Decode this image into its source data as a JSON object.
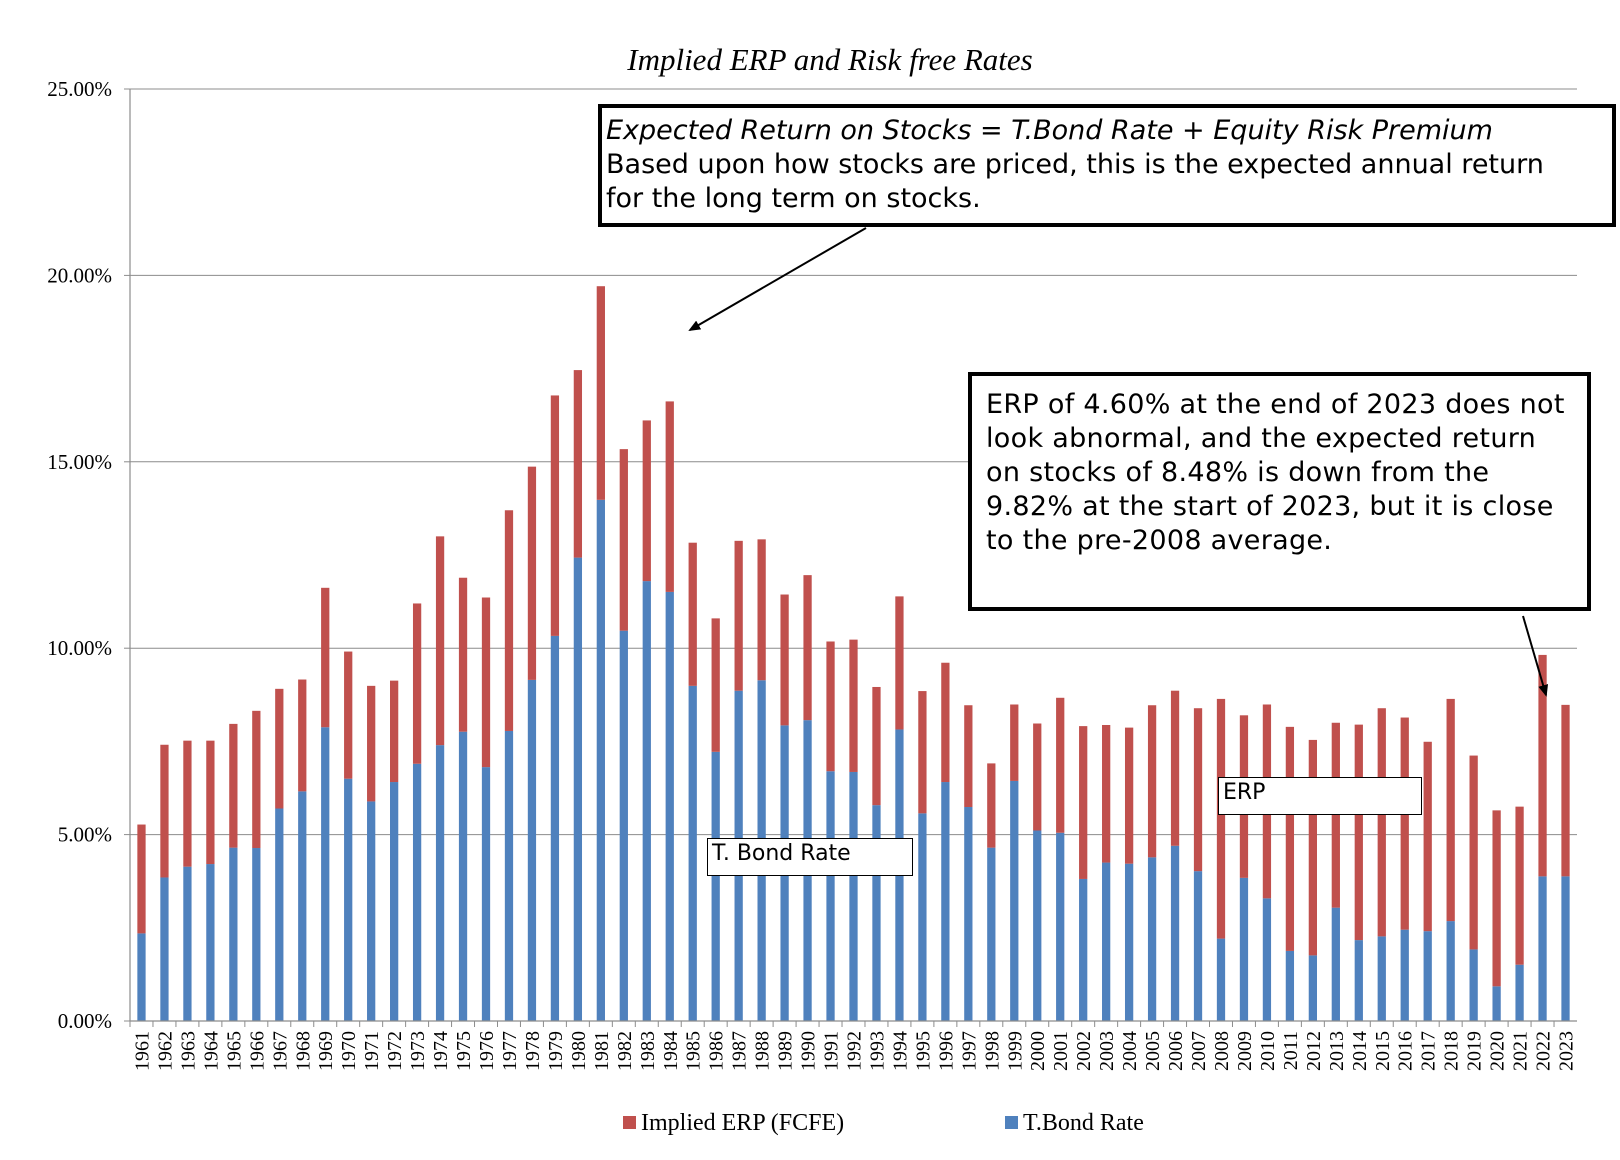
{
  "chart_data": {
    "type": "bar",
    "stacked": true,
    "title": "Implied ERP and Risk free Rates",
    "xlabel": "",
    "ylabel": "",
    "ylim": [
      0,
      25
    ],
    "yticks": [
      "0.00%",
      "5.00%",
      "10.00%",
      "15.00%",
      "20.00%",
      "25.00%"
    ],
    "ytick_values": [
      0,
      5,
      10,
      15,
      20,
      25
    ],
    "grid": true,
    "legend_position": "bottom",
    "categories": [
      "1961",
      "1962",
      "1963",
      "1964",
      "1965",
      "1966",
      "1967",
      "1968",
      "1969",
      "1970",
      "1971",
      "1972",
      "1973",
      "1974",
      "1975",
      "1976",
      "1977",
      "1978",
      "1979",
      "1980",
      "1981",
      "1982",
      "1983",
      "1984",
      "1985",
      "1986",
      "1987",
      "1988",
      "1989",
      "1990",
      "1991",
      "1992",
      "1993",
      "1994",
      "1995",
      "1996",
      "1997",
      "1998",
      "1999",
      "2000",
      "2001",
      "2002",
      "2003",
      "2004",
      "2005",
      "2006",
      "2007",
      "2008",
      "2009",
      "2010",
      "2011",
      "2012",
      "2013",
      "2014",
      "2015",
      "2016",
      "2017",
      "2018",
      "2019",
      "2020",
      "2021",
      "2022",
      "2023"
    ],
    "series": [
      {
        "name": "T.Bond Rate",
        "color": "#4f81bd",
        "values": [
          2.35,
          3.85,
          4.14,
          4.21,
          4.65,
          4.64,
          5.7,
          6.16,
          7.88,
          6.5,
          5.89,
          6.41,
          6.9,
          7.4,
          7.76,
          6.81,
          7.78,
          9.15,
          10.33,
          12.43,
          13.98,
          10.47,
          11.8,
          11.51,
          8.99,
          7.22,
          8.86,
          9.14,
          7.93,
          8.07,
          6.7,
          6.68,
          5.79,
          7.82,
          5.57,
          6.41,
          5.74,
          4.65,
          6.44,
          5.11,
          5.05,
          3.81,
          4.25,
          4.22,
          4.39,
          4.7,
          4.02,
          2.21,
          3.84,
          3.29,
          1.88,
          1.76,
          3.04,
          2.17,
          2.27,
          2.45,
          2.41,
          2.68,
          1.92,
          0.93,
          1.51,
          3.88,
          3.88
        ]
      },
      {
        "name": "Implied ERP (FCFE)",
        "color": "#c0504d",
        "values": [
          2.92,
          3.56,
          3.38,
          3.31,
          3.32,
          3.68,
          3.21,
          3.0,
          3.74,
          3.41,
          3.1,
          2.72,
          4.3,
          5.6,
          4.13,
          4.55,
          5.92,
          5.72,
          6.45,
          5.03,
          5.73,
          4.87,
          4.31,
          5.11,
          3.84,
          3.58,
          4.02,
          3.78,
          3.51,
          3.89,
          3.48,
          3.55,
          3.17,
          3.57,
          3.28,
          3.2,
          2.73,
          2.26,
          2.05,
          2.87,
          3.62,
          4.1,
          3.69,
          3.65,
          4.08,
          4.16,
          4.37,
          6.43,
          4.36,
          5.2,
          6.01,
          5.78,
          4.96,
          5.78,
          6.12,
          5.69,
          5.08,
          5.96,
          5.2,
          4.72,
          4.24,
          5.94,
          4.6
        ]
      }
    ],
    "annotations": {
      "top_callout_equation": "Expected Return on Stocks = T.Bond Rate + Equity Risk Premium",
      "top_callout_line2": "Based upon how stocks are priced, this is the expected annual return",
      "top_callout_line3": "for the long term on stocks.",
      "right_callout": "ERP of 4.60% at the end of 2023 does not look abnormal, and the expected return on stocks of 8.48% is down from the 9.82% at the start of 2023, but it is close to the pre-2008 average.",
      "tbond_label": "T. Bond Rate",
      "erp_label": "ERP"
    }
  }
}
